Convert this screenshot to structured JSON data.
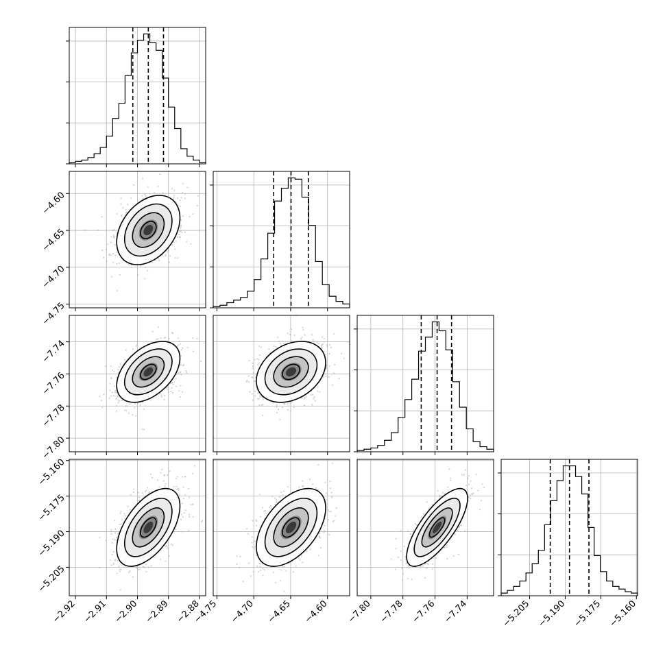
{
  "chart_data": {
    "type": "corner",
    "parameters": [
      {
        "id": "p0",
        "range": [
          -2.922,
          -2.878
        ],
        "ticks": [
          -2.92,
          -2.91,
          -2.9,
          -2.89,
          -2.88
        ],
        "tick_labels": [
          "−2.92",
          "−2.91",
          "−2.90",
          "−2.89",
          "−2.88"
        ],
        "quantiles": [
          -2.9015,
          -2.8965,
          -2.8916
        ],
        "median": -2.8965,
        "sigma": 0.0051,
        "histogram_counts": [
          1,
          2,
          3,
          5,
          8,
          13,
          22,
          36,
          48,
          70,
          88,
          98,
          103,
          96,
          90,
          68,
          45,
          28,
          12,
          6,
          3,
          1
        ]
      },
      {
        "id": "p1",
        "range": [
          -4.755,
          -4.57
        ],
        "ticks": [
          -4.75,
          -4.7,
          -4.65,
          -4.6
        ],
        "tick_labels": [
          "−4.75",
          "−4.70",
          "−4.65",
          "−4.60"
        ],
        "quantiles": [
          -4.673,
          -4.6495,
          -4.626
        ],
        "median": -4.6495,
        "sigma": 0.0235,
        "histogram_counts": [
          1,
          2,
          4,
          6,
          8,
          13,
          22,
          38,
          58,
          83,
          93,
          101,
          100,
          86,
          64,
          36,
          18,
          9,
          5,
          3
        ]
      },
      {
        "id": "p2",
        "range": [
          -7.8085,
          -7.7235
        ],
        "ticks": [
          -7.8,
          -7.78,
          -7.76,
          -7.74
        ],
        "tick_labels": [
          "−7.80",
          "−7.78",
          "−7.76",
          "−7.74"
        ],
        "quantiles": [
          -7.7686,
          -7.7587,
          -7.7497
        ],
        "median": -7.7587,
        "sigma": 0.0095,
        "histogram_counts": [
          1,
          2,
          3,
          5,
          9,
          15,
          27,
          41,
          57,
          79,
          90,
          102,
          95,
          80,
          55,
          35,
          18,
          8,
          4,
          2
        ]
      },
      {
        "id": "p3",
        "range": [
          -5.217,
          -5.1595
        ],
        "ticks": [
          -5.205,
          -5.19,
          -5.175,
          -5.16
        ],
        "tick_labels": [
          "−5.205",
          "−5.190",
          "−5.175",
          "−5.160"
        ],
        "quantiles": [
          -5.1963,
          -5.1882,
          -5.18
        ],
        "median": -5.1882,
        "sigma": 0.0082,
        "histogram_counts": [
          2,
          4,
          7,
          11,
          17,
          24,
          34,
          53,
          71,
          86,
          97,
          97,
          89,
          76,
          51,
          30,
          18,
          11,
          7,
          5,
          3,
          2
        ]
      }
    ],
    "correlations": {
      "1_0": 0.35,
      "2_0": 0.45,
      "2_1": 0.3,
      "3_0": 0.55,
      "3_1": 0.5,
      "3_2": 0.75
    },
    "contour_levels_sigma": [
      0.5,
      1.0,
      1.5,
      2.0
    ],
    "grid": true,
    "colors": {
      "line": "#000000",
      "scatter": "#b4b4b4",
      "density_scale": [
        "#ffffff",
        "#000000"
      ]
    }
  }
}
